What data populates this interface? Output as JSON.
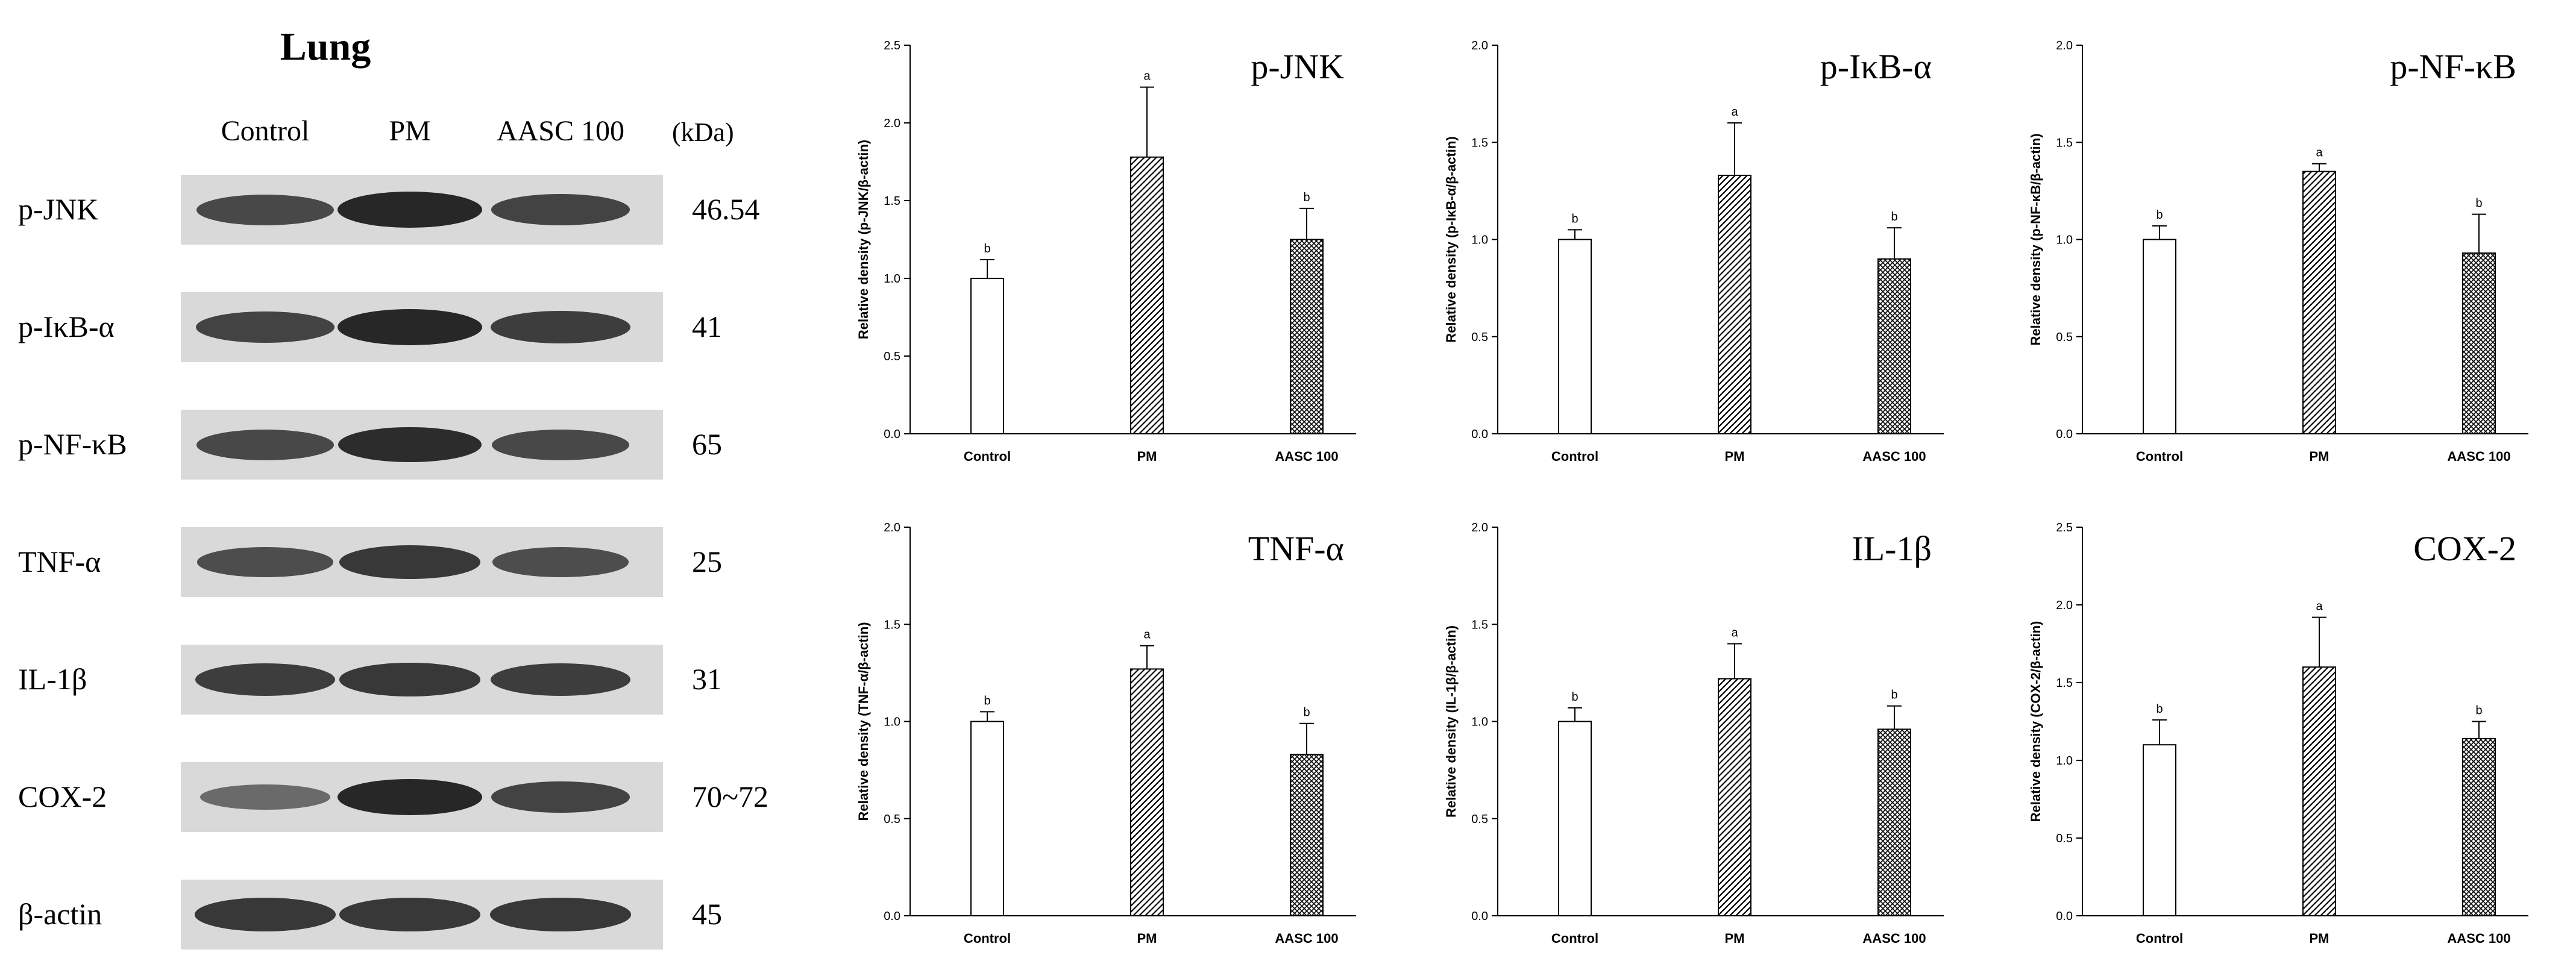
{
  "blot": {
    "title": "Lung",
    "lanes": [
      "Control",
      "PM",
      "AASC 100"
    ],
    "kda_header": "(kDa)",
    "rows": [
      {
        "label": "p-JNK",
        "kda": "46.54",
        "intensity": [
          0.7,
          1.0,
          0.75
        ]
      },
      {
        "label": "p-IκB-α",
        "kda": "41",
        "intensity": [
          0.75,
          1.0,
          0.8
        ]
      },
      {
        "label": "p-NF-κB",
        "kda": "65",
        "intensity": [
          0.7,
          0.95,
          0.7
        ]
      },
      {
        "label": "TNF-α",
        "kda": "25",
        "intensity": [
          0.65,
          0.85,
          0.65
        ]
      },
      {
        "label": "IL-1β",
        "kda": "31",
        "intensity": [
          0.8,
          0.85,
          0.8
        ]
      },
      {
        "label": "COX-2",
        "kda": "70~72",
        "intensity": [
          0.4,
          1.0,
          0.75
        ]
      },
      {
        "label": "β-actin",
        "kda": "45",
        "intensity": [
          0.85,
          0.85,
          0.85
        ]
      }
    ]
  },
  "chart_data": [
    {
      "type": "bar",
      "title": "p-JNK",
      "ylabel": "Relative density (p-JNK/β-actin)",
      "categories": [
        "Control",
        "PM",
        "AASC 100"
      ],
      "values": [
        1.0,
        1.78,
        1.25
      ],
      "errors": [
        0.12,
        0.45,
        0.2
      ],
      "letters": [
        "b",
        "a",
        "b"
      ],
      "ylim": [
        0,
        2.5
      ],
      "ticks": [
        "0.0",
        "0.5",
        "1.0",
        "1.5",
        "2.0",
        "2.5"
      ]
    },
    {
      "type": "bar",
      "title": "p-IκB-α",
      "ylabel": "Relative density (p-IκB-α/β-actin)",
      "categories": [
        "Control",
        "PM",
        "AASC 100"
      ],
      "values": [
        1.0,
        1.33,
        0.9
      ],
      "errors": [
        0.05,
        0.27,
        0.16
      ],
      "letters": [
        "b",
        "a",
        "b"
      ],
      "ylim": [
        0,
        2.0
      ],
      "ticks": [
        "0.0",
        "0.5",
        "1.0",
        "1.5",
        "2.0"
      ]
    },
    {
      "type": "bar",
      "title": "p-NF-κB",
      "ylabel": "Relative density (p-NF-κB/β-actin)",
      "categories": [
        "Control",
        "PM",
        "AASC 100"
      ],
      "values": [
        1.0,
        1.35,
        0.93
      ],
      "errors": [
        0.07,
        0.04,
        0.2
      ],
      "letters": [
        "b",
        "a",
        "b"
      ],
      "ylim": [
        0,
        2.0
      ],
      "ticks": [
        "0.0",
        "0.5",
        "1.0",
        "1.5",
        "2.0"
      ]
    },
    {
      "type": "bar",
      "title": "TNF-α",
      "ylabel": "Relative density (TNF-α/β-actin)",
      "categories": [
        "Control",
        "PM",
        "AASC 100"
      ],
      "values": [
        1.0,
        1.27,
        0.83
      ],
      "errors": [
        0.05,
        0.12,
        0.16
      ],
      "letters": [
        "b",
        "a",
        "b"
      ],
      "ylim": [
        0,
        2.0
      ],
      "ticks": [
        "0.0",
        "0.5",
        "1.0",
        "1.5",
        "2.0"
      ]
    },
    {
      "type": "bar",
      "title": "IL-1β",
      "ylabel": "Relative density (IL-1β/β-actin)",
      "categories": [
        "Control",
        "PM",
        "AASC 100"
      ],
      "values": [
        1.0,
        1.22,
        0.96
      ],
      "errors": [
        0.07,
        0.18,
        0.12
      ],
      "letters": [
        "b",
        "a",
        "b"
      ],
      "ylim": [
        0,
        2.0
      ],
      "ticks": [
        "0.0",
        "0.5",
        "1.0",
        "1.5",
        "2.0"
      ]
    },
    {
      "type": "bar",
      "title": "COX-2",
      "ylabel": "Relative density (COX-2/β-actin)",
      "categories": [
        "Control",
        "PM",
        "AASC 100"
      ],
      "values": [
        1.1,
        1.6,
        1.14
      ],
      "errors": [
        0.16,
        0.32,
        0.11
      ],
      "letters": [
        "b",
        "a",
        "b"
      ],
      "ylim": [
        0,
        2.5
      ],
      "ticks": [
        "0.0",
        "0.5",
        "1.0",
        "1.5",
        "2.0",
        "2.5"
      ]
    }
  ]
}
